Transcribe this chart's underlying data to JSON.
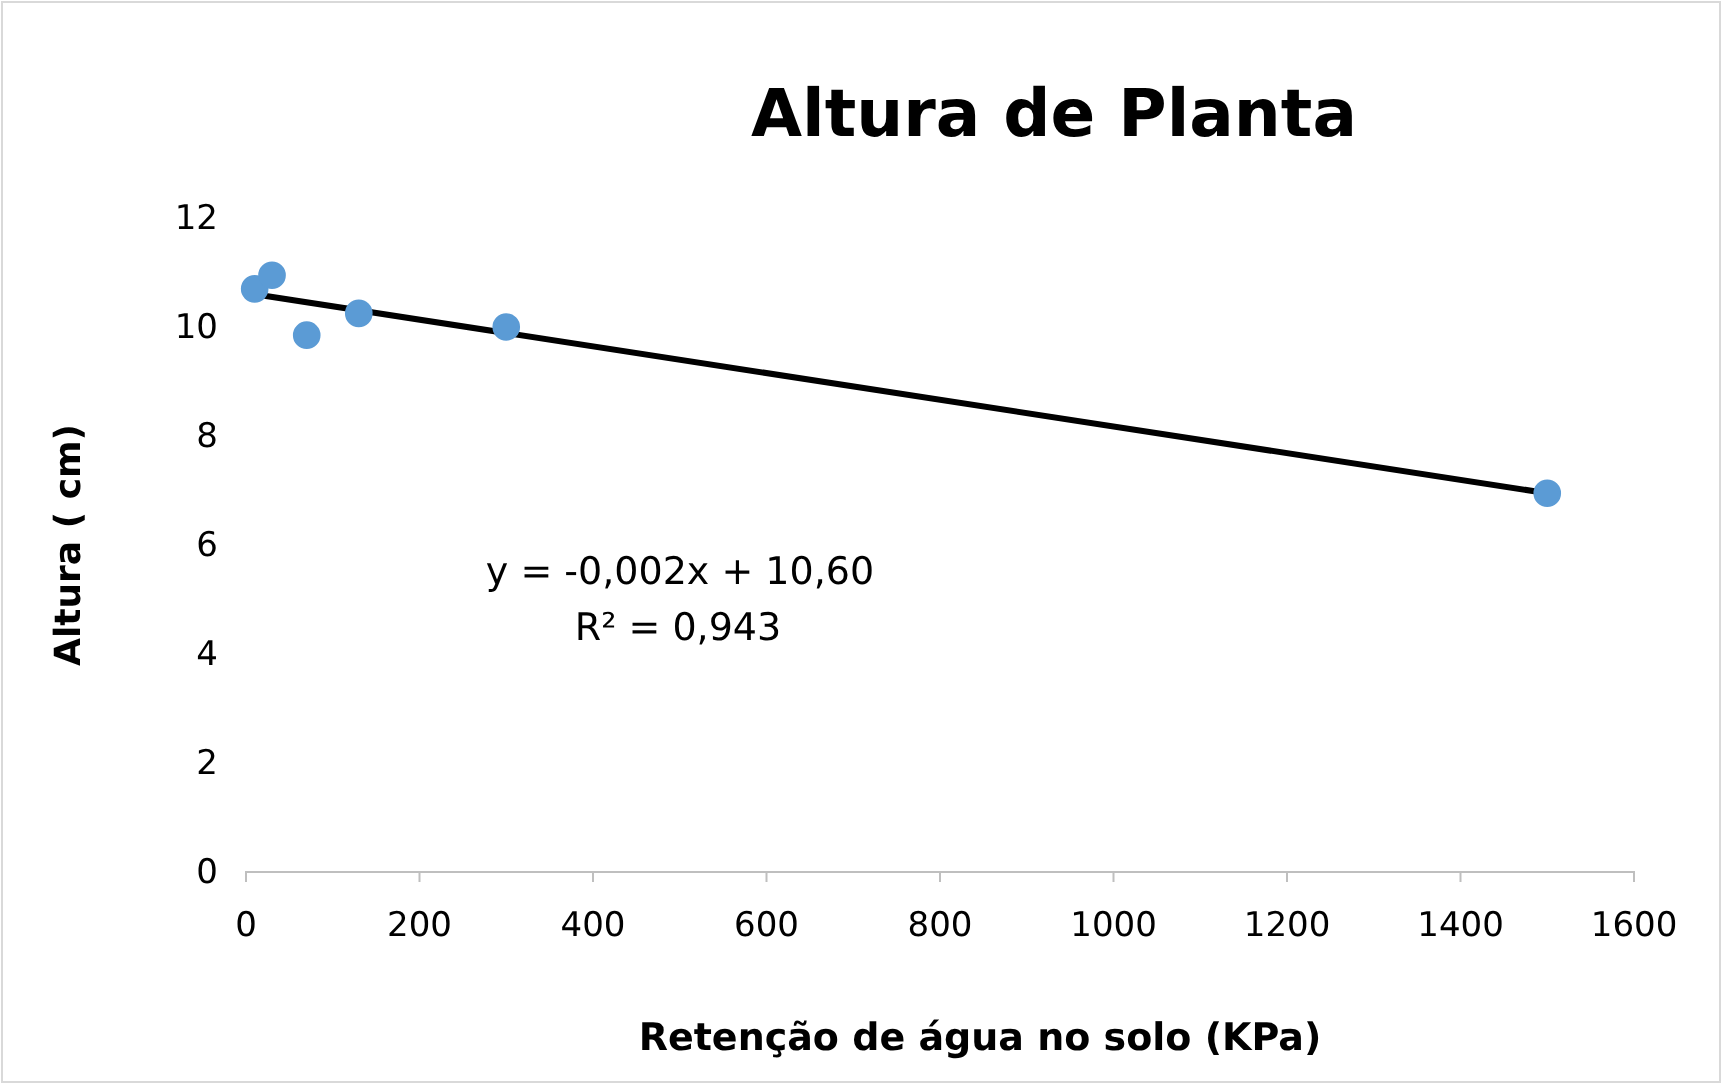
{
  "chart_data": {
    "type": "scatter",
    "title": "Altura de Planta",
    "xlabel": "Retenção de água no solo  (KPa)",
    "ylabel": "Altura ( cm)",
    "xlim": [
      0,
      1600
    ],
    "xticks": [
      0,
      200,
      400,
      600,
      800,
      1000,
      1200,
      1400,
      1600
    ],
    "ylim": [
      0,
      12
    ],
    "yticks": [
      0,
      2,
      4,
      6,
      8,
      10,
      12
    ],
    "grid": false,
    "marker": "circle",
    "series": [
      {
        "color": "#5b9bd5",
        "x": [
          10,
          30,
          70,
          130,
          300,
          1500
        ],
        "values": [
          10.7,
          10.95,
          9.85,
          10.25,
          10.0,
          6.95
        ]
      },
      {
        "type": "line",
        "color": "#000000",
        "marker": "none",
        "line_style": "solid",
        "x": [
          10,
          1500
        ],
        "values": [
          10.6,
          6.95
        ]
      }
    ],
    "annotations": [
      "y = -0,002x + 10,60",
      "R² = 0,943"
    ]
  }
}
